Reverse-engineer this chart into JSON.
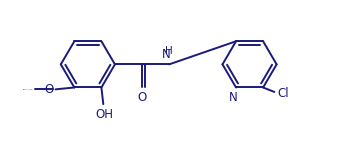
{
  "bg_color": "#ffffff",
  "line_color": "#1a1a7a",
  "bond_width": 1.4,
  "font_size": 8.5,
  "figsize": [
    3.6,
    1.51
  ],
  "dpi": 100,
  "xlim": [
    0,
    9.5
  ],
  "ylim": [
    0,
    4.0
  ]
}
